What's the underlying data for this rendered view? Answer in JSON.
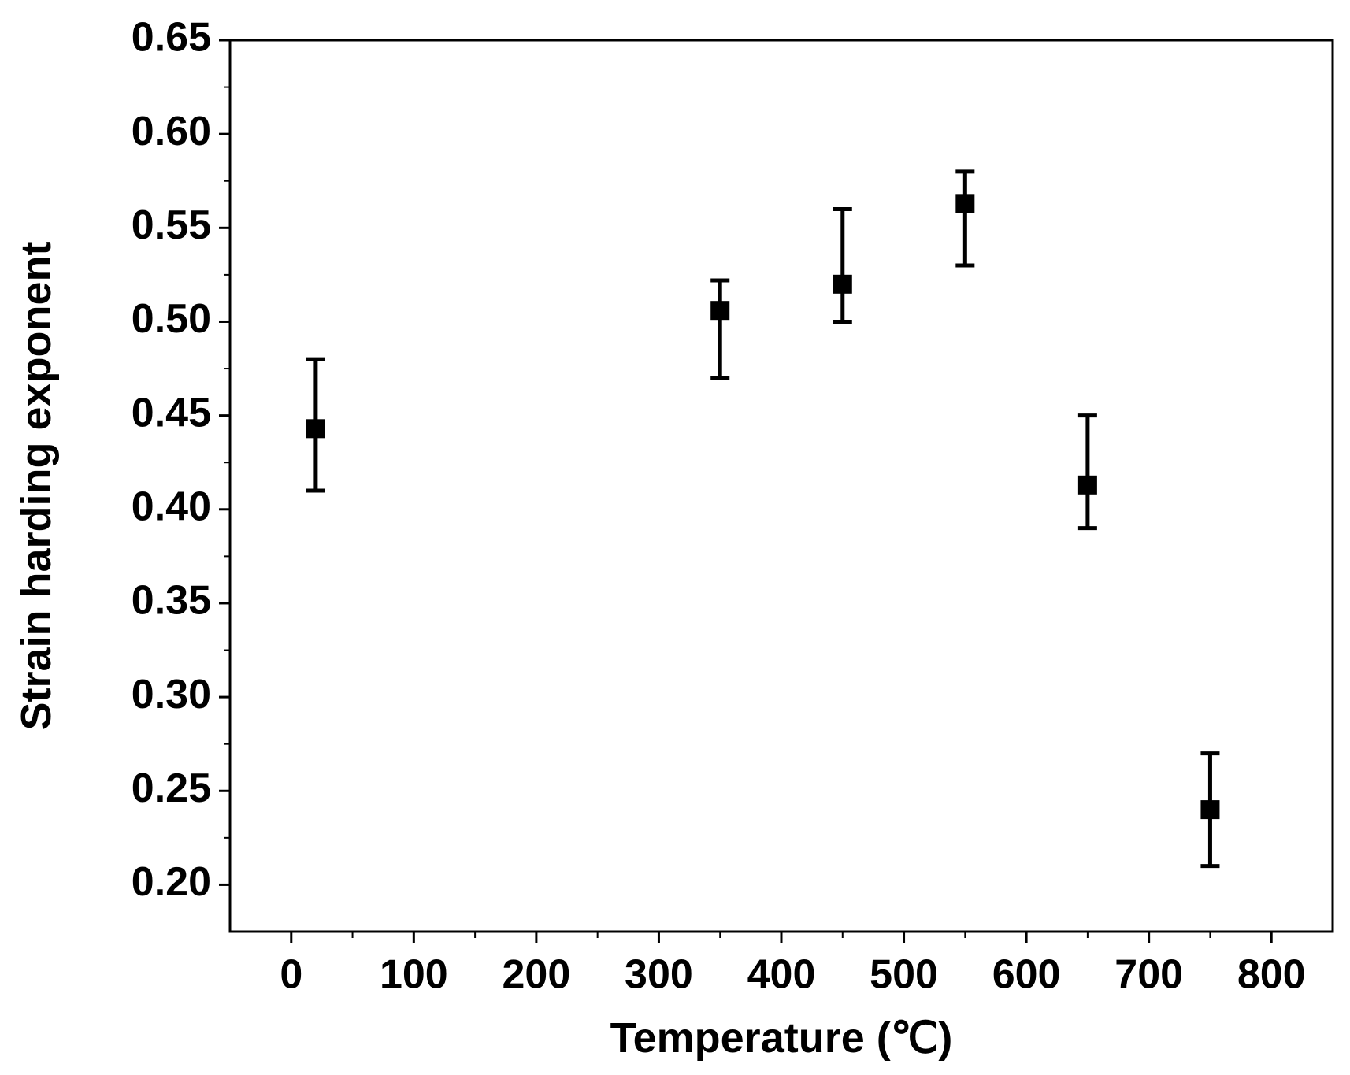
{
  "chart_data": {
    "type": "scatter",
    "x_label": "Temperature (℃)",
    "y_label": "Strain harding exponent",
    "x": [
      20,
      350,
      450,
      550,
      650,
      750
    ],
    "values": [
      0.443,
      0.506,
      0.52,
      0.563,
      0.413,
      0.24
    ],
    "lower": [
      0.41,
      0.47,
      0.5,
      0.53,
      0.39,
      0.21
    ],
    "upper": [
      0.48,
      0.522,
      0.56,
      0.58,
      0.45,
      0.27
    ],
    "color": "#000000",
    "xlim": [
      -50,
      850
    ],
    "xticks": [
      0,
      100,
      200,
      300,
      400,
      500,
      600,
      700,
      800
    ],
    "ylim": [
      0.175,
      0.65
    ],
    "yticks": [
      {
        "value": 0.2,
        "label": "0.20"
      },
      {
        "value": 0.25,
        "label": "0.25"
      },
      {
        "value": 0.3,
        "label": "0.30"
      },
      {
        "value": 0.35,
        "label": "0.35"
      },
      {
        "value": 0.4,
        "label": "0.40"
      },
      {
        "value": 0.45,
        "label": "0.45"
      },
      {
        "value": 0.5,
        "label": "0.50"
      },
      {
        "value": 0.55,
        "label": "0.55"
      },
      {
        "value": 0.6,
        "label": "0.60"
      },
      {
        "value": 0.65,
        "label": "0.65"
      }
    ]
  }
}
